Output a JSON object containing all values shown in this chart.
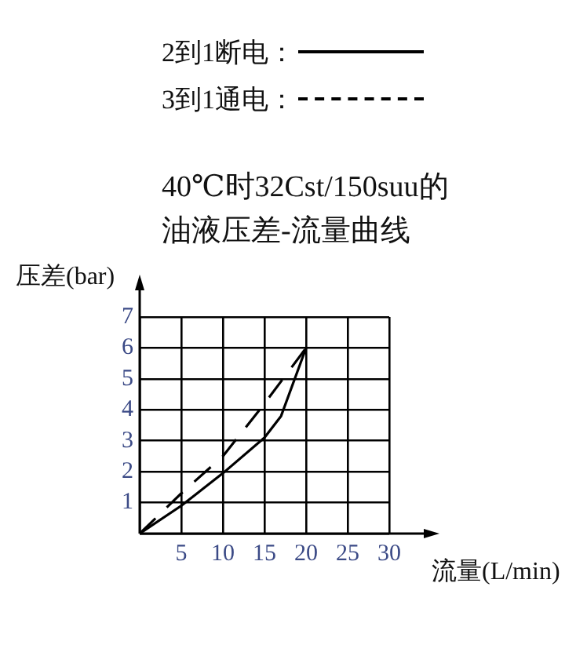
{
  "chart_data": {
    "type": "line",
    "title": "40℃时32Cst/150suu的油液压差-流量曲线",
    "xlabel": "流量(L/min)",
    "ylabel": "压差(bar)",
    "series": [
      {
        "name": "2到1断电：",
        "color": "#000000",
        "line_style": "solid",
        "x": [
          0,
          5,
          10,
          15,
          17,
          20
        ],
        "values": [
          0,
          0.9,
          1.95,
          3.1,
          3.8,
          6
        ]
      },
      {
        "name": "3到1通电：",
        "color": "#000000",
        "line_style": "dashed",
        "x": [
          0,
          5,
          10,
          15,
          20
        ],
        "values": [
          0,
          1.3,
          2.5,
          4.2,
          6
        ]
      }
    ],
    "xlim": [
      0,
      30
    ],
    "xticks": [
      {
        "value": 0,
        "label": null
      },
      5,
      10,
      15,
      20,
      25,
      30
    ],
    "ylim": [
      0,
      7
    ],
    "yticks": [
      {
        "value": 0,
        "label": null
      },
      1,
      2,
      3,
      4,
      5,
      6,
      7
    ],
    "grid": true,
    "legend": "top",
    "marker": "none"
  }
}
